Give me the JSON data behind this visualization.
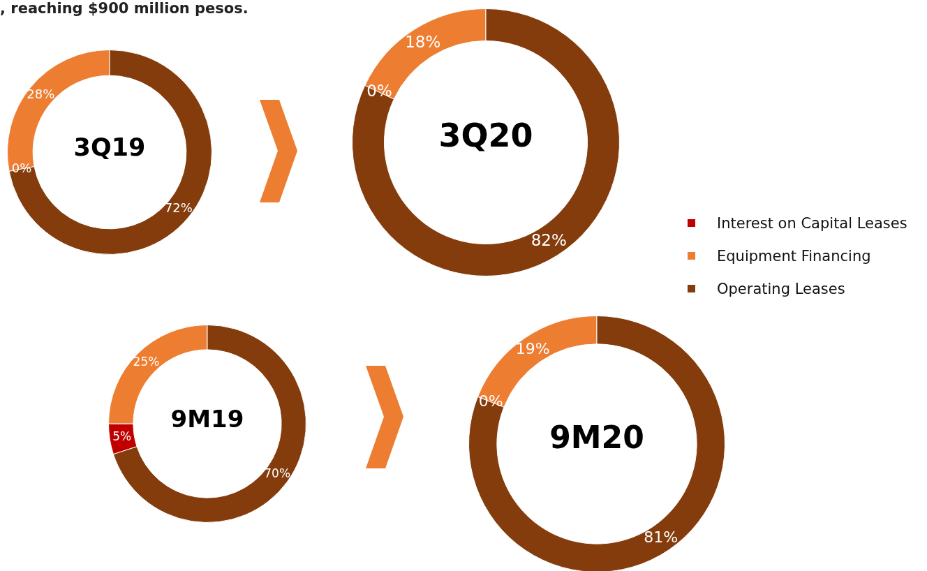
{
  "chart_data": [
    {
      "type": "donut",
      "title": "3Q19",
      "legend": "right",
      "annotations": [
        ", reaching $900 million pesos."
      ],
      "categories": [
        "Interest on Capital Leases",
        "Equipment Financing",
        "Operating Leases"
      ],
      "values": [
        0,
        28,
        72
      ],
      "value_labels": [
        "0%",
        "28%",
        "72%"
      ],
      "colors": [
        "#c00000",
        "#ed7d31",
        "#843c0c"
      ]
    },
    {
      "type": "donut",
      "title": "3Q20",
      "categories": [
        null,
        null,
        null
      ],
      "values": [
        0,
        18,
        82
      ],
      "value_labels": [
        "0%",
        "18%",
        "82%"
      ],
      "colors": [
        "#c00000",
        "#ed7d31",
        "#843c0c"
      ]
    },
    {
      "type": "donut",
      "title": "9M19",
      "categories": [
        null,
        null,
        null
      ],
      "values": [
        5,
        25,
        70
      ],
      "value_labels": [
        "5%",
        "25%",
        "70%"
      ],
      "colors": [
        "#c00000",
        "#ed7d31",
        "#843c0c"
      ]
    },
    {
      "type": "donut",
      "title": "9M20",
      "categories": [
        null,
        null,
        null
      ],
      "values": [
        0,
        19,
        81
      ],
      "value_labels": [
        "0%",
        "19%",
        "81%"
      ],
      "colors": [
        "#c00000",
        "#ed7d31",
        "#843c0c"
      ]
    }
  ]
}
